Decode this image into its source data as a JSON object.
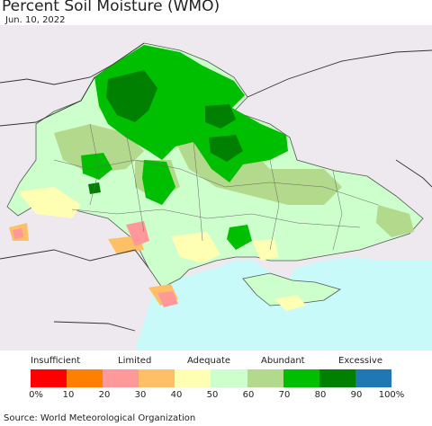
{
  "header": {
    "title": "Percent Soil Moisture (WMO)",
    "date": "Jun. 10, 2022"
  },
  "legend": {
    "categories": [
      {
        "label": "Insufficient"
      },
      {
        "label": "Limited"
      },
      {
        "label": "Adequate"
      },
      {
        "label": "Abundant"
      },
      {
        "label": "Excessive"
      }
    ],
    "colors": [
      "#ff0000",
      "#ff8000",
      "#ff9999",
      "#ffbf66",
      "#ffffb3",
      "#ccffcc",
      "#b3d98c",
      "#00bf00",
      "#008000",
      "#1f78b4"
    ],
    "ticks": [
      "0%",
      "10",
      "20",
      "30",
      "40",
      "50",
      "60",
      "70",
      "80",
      "90",
      "100%"
    ]
  },
  "map": {
    "colors": {
      "sea": "#c8fafa",
      "outside": "#ede9ee",
      "land_base": "#ccffcc",
      "abundant": "#b3d98c",
      "wet": "#00bf00",
      "very_wet": "#008000",
      "adequate": "#ffffb3",
      "limited": "#ffbf66",
      "pink": "#ff9999"
    }
  },
  "footer": {
    "source": "Source: World Meteorological Organization"
  }
}
